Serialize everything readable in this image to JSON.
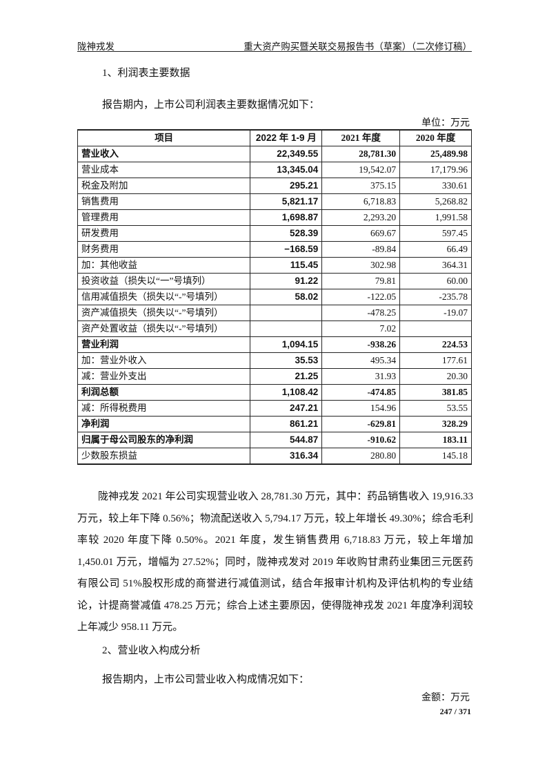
{
  "header": {
    "left": "陇神戎发",
    "right": "重大资产购买暨关联交易报告书（草案）（二次修订稿）"
  },
  "section1": {
    "title": "1、利润表主要数据",
    "intro": "报告期内，上市公司利润表主要数据情况如下：",
    "unit": "单位：万元"
  },
  "table": {
    "columns": [
      "项目",
      "2022 年 1-9 月",
      "2021 年度",
      "2020 年度"
    ],
    "rows": [
      {
        "item": "营业收入",
        "v2022": "22,349.55",
        "v2021": "28,781.30",
        "v2020": "25,489.98",
        "bold": true
      },
      {
        "item": "营业成本",
        "v2022": "13,345.04",
        "v2021": "19,542.07",
        "v2020": "17,179.96"
      },
      {
        "item": "税金及附加",
        "v2022": "295.21",
        "v2021": "375.15",
        "v2020": "330.61"
      },
      {
        "item": "销售费用",
        "v2022": "5,821.17",
        "v2021": "6,718.83",
        "v2020": "5,268.82"
      },
      {
        "item": "管理费用",
        "v2022": "1,698.87",
        "v2021": "2,293.20",
        "v2020": "1,991.58"
      },
      {
        "item": "研发费用",
        "v2022": "528.39",
        "v2021": "669.67",
        "v2020": "597.45"
      },
      {
        "item": "财务费用",
        "v2022": "−168.59",
        "v2021": "-89.84",
        "v2020": "66.49"
      },
      {
        "item": "加：其他收益",
        "v2022": "115.45",
        "v2021": "302.98",
        "v2020": "364.31"
      },
      {
        "item": "投资收益（损失以“一”号填列）",
        "v2022": "91.22",
        "v2021": "79.81",
        "v2020": "60.00"
      },
      {
        "item": "信用减值损失（损失以“-”号填列）",
        "v2022": "58.02",
        "v2021": "-122.05",
        "v2020": "-235.78"
      },
      {
        "item": "资产减值损失（损失以“-”号填列）",
        "v2022": "",
        "v2021": "-478.25",
        "v2020": "-19.07"
      },
      {
        "item": "资产处置收益（损失以“-”号填列）",
        "v2022": "",
        "v2021": "7.02",
        "v2020": ""
      },
      {
        "item": "营业利润",
        "v2022": "1,094.15",
        "v2021": "-938.26",
        "v2020": "224.53",
        "bold": true
      },
      {
        "item": "加：营业外收入",
        "v2022": "35.53",
        "v2021": "495.34",
        "v2020": "177.61"
      },
      {
        "item": "减：营业外支出",
        "v2022": "21.25",
        "v2021": "31.93",
        "v2020": "20.30"
      },
      {
        "item": "利润总额",
        "v2022": "1,108.42",
        "v2021": "-474.85",
        "v2020": "381.85",
        "bold": true
      },
      {
        "item": "减：所得税费用",
        "v2022": "247.21",
        "v2021": "154.96",
        "v2020": "53.55"
      },
      {
        "item": "净利润",
        "v2022": "861.21",
        "v2021": "-629.81",
        "v2020": "328.29",
        "bold": true
      },
      {
        "item": "归属于母公司股东的净利润",
        "v2022": "544.87",
        "v2021": "-910.62",
        "v2020": "183.11",
        "bold": true
      },
      {
        "item": "少数股东损益",
        "v2022": "316.34",
        "v2021": "280.80",
        "v2020": "145.18"
      }
    ]
  },
  "paragraph": "陇神戎发 2021 年公司实现营业收入 28,781.30 万元，其中：药品销售收入 19,916.33 万元，较上年下降 0.56%；物流配送收入 5,794.17 万元，较上年增长 49.30%；综合毛利率较 2020 年度下降 0.50%。2021 年度，发生销售费用 6,718.83 万元，较上年增加 1,450.01 万元，增幅为 27.52%；同时，陇神戎发对 2019 年收购甘肃药业集团三元医药有限公司 51%股权形成的商誉进行减值测试，结合年报审计机构及评估机构的专业结论，计提商誉减值 478.25 万元；综合上述主要原因，使得陇神戎发 2021 年度净利润较上年减少 958.11 万元。",
  "section2": {
    "title": "2、营业收入构成分析",
    "intro": "报告期内，上市公司营业收入构成情况如下：",
    "unit": "金额：万元"
  },
  "page_number": "247 / 371"
}
